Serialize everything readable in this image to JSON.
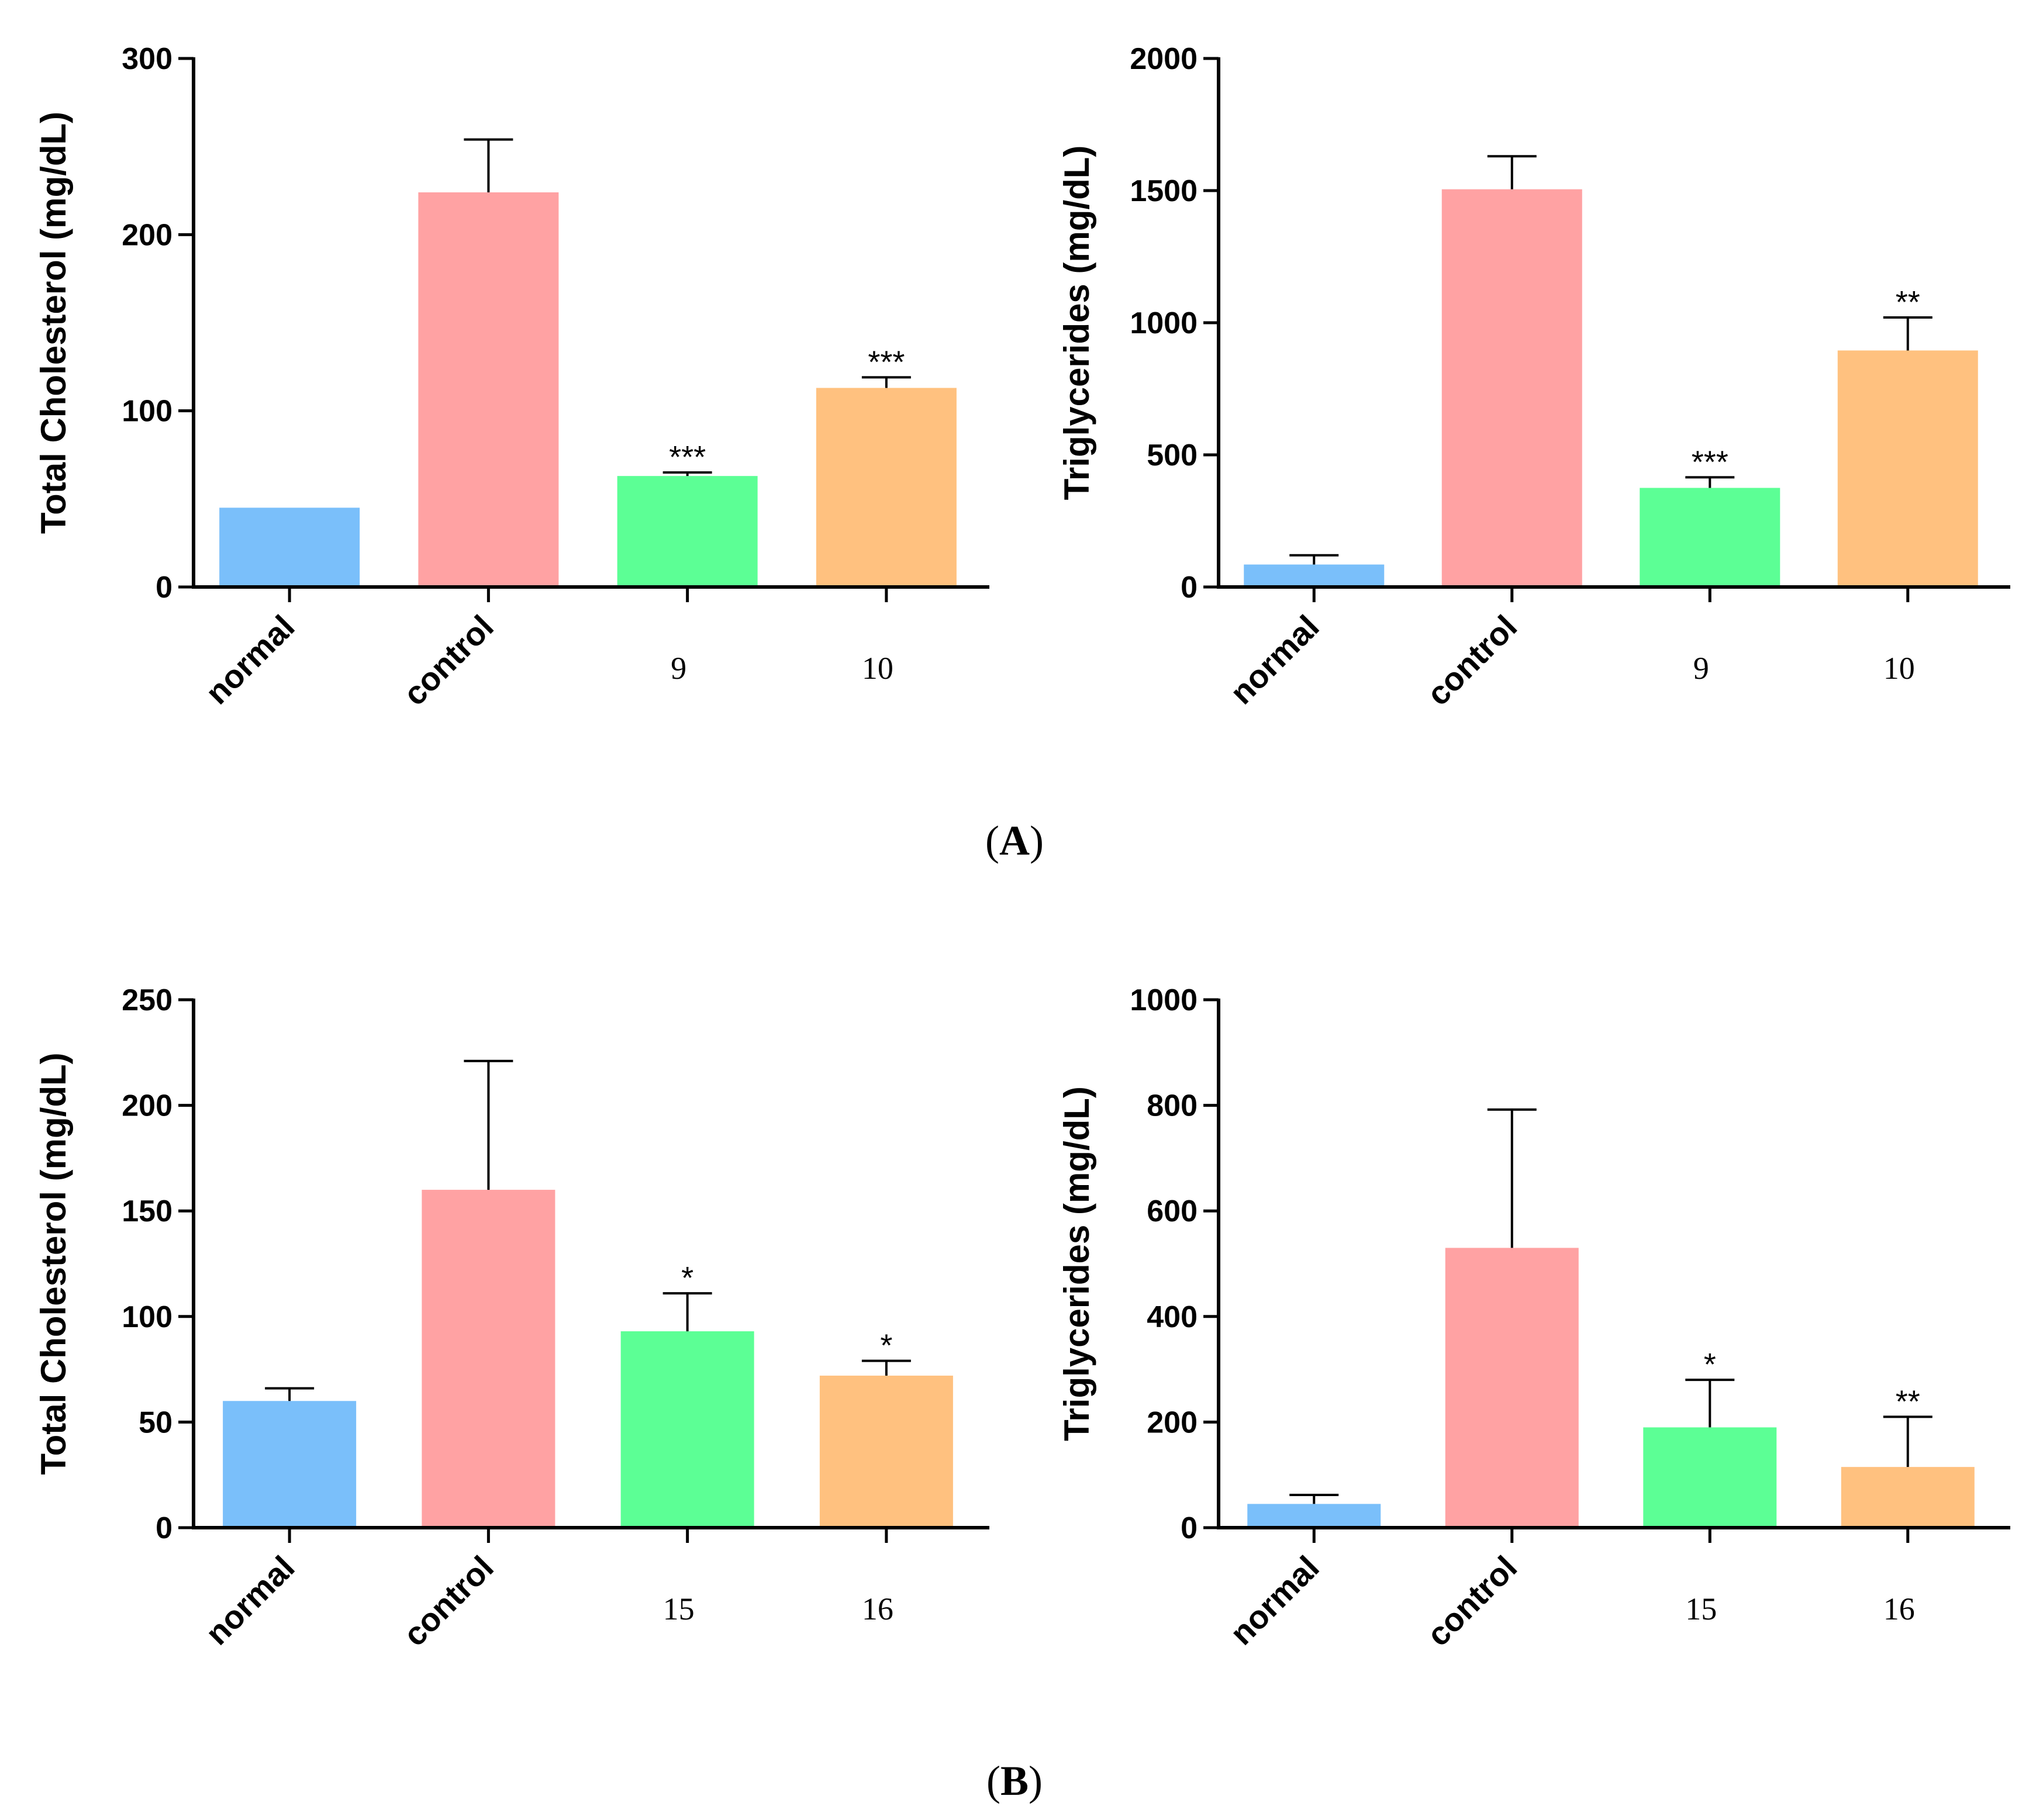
{
  "colors": {
    "normal": "#7abffa",
    "control": "#ffa2a3",
    "group3": "#5cff95",
    "group4": "#ffc17f",
    "axis": "#000000"
  },
  "panel_labels": [
    {
      "prefix": "(",
      "letter": "A",
      "suffix": ")"
    },
    {
      "prefix": "(",
      "letter": "B",
      "suffix": ")"
    }
  ],
  "chart_data": [
    {
      "type": "bar",
      "panel": "A",
      "ylabel": "Total Cholesterol (mg/dL)",
      "ylim": [
        0,
        300
      ],
      "yticks": [
        "0",
        "100",
        "200",
        "300"
      ],
      "categories": [
        "normal",
        "control",
        "9",
        "10"
      ],
      "values": [
        45,
        224,
        63,
        113
      ],
      "errors": [
        0,
        30,
        2,
        6
      ],
      "significance": [
        "",
        "",
        "***",
        "***"
      ]
    },
    {
      "type": "bar",
      "panel": "A",
      "ylabel": "Triglycerides (mg/dL)",
      "ylim": [
        0,
        2000
      ],
      "yticks": [
        "0",
        "500",
        "1000",
        "1500",
        "2000"
      ],
      "categories": [
        "normal",
        "control",
        "9",
        "10"
      ],
      "values": [
        85,
        1505,
        375,
        895
      ],
      "errors": [
        35,
        125,
        40,
        125
      ],
      "significance": [
        "",
        "",
        "***",
        "**"
      ]
    },
    {
      "type": "bar",
      "panel": "B",
      "ylabel": "Total Cholesterol (mg/dL)",
      "ylim": [
        0,
        250
      ],
      "yticks": [
        "0",
        "50",
        "100",
        "150",
        "200",
        "250"
      ],
      "categories": [
        "normal",
        "control",
        "15",
        "16"
      ],
      "values": [
        60,
        160,
        93,
        72
      ],
      "errors": [
        6,
        61,
        18,
        7
      ],
      "significance": [
        "",
        "",
        "*",
        "*"
      ]
    },
    {
      "type": "bar",
      "panel": "B",
      "ylabel": "Triglycerides (mg/dL)",
      "ylim": [
        0,
        1000
      ],
      "yticks": [
        "0",
        "200",
        "400",
        "600",
        "800",
        "1000"
      ],
      "categories": [
        "normal",
        "control",
        "15",
        "16"
      ],
      "values": [
        45,
        530,
        190,
        115
      ],
      "errors": [
        17,
        262,
        90,
        95
      ],
      "significance": [
        "",
        "",
        "*",
        "**"
      ]
    }
  ]
}
